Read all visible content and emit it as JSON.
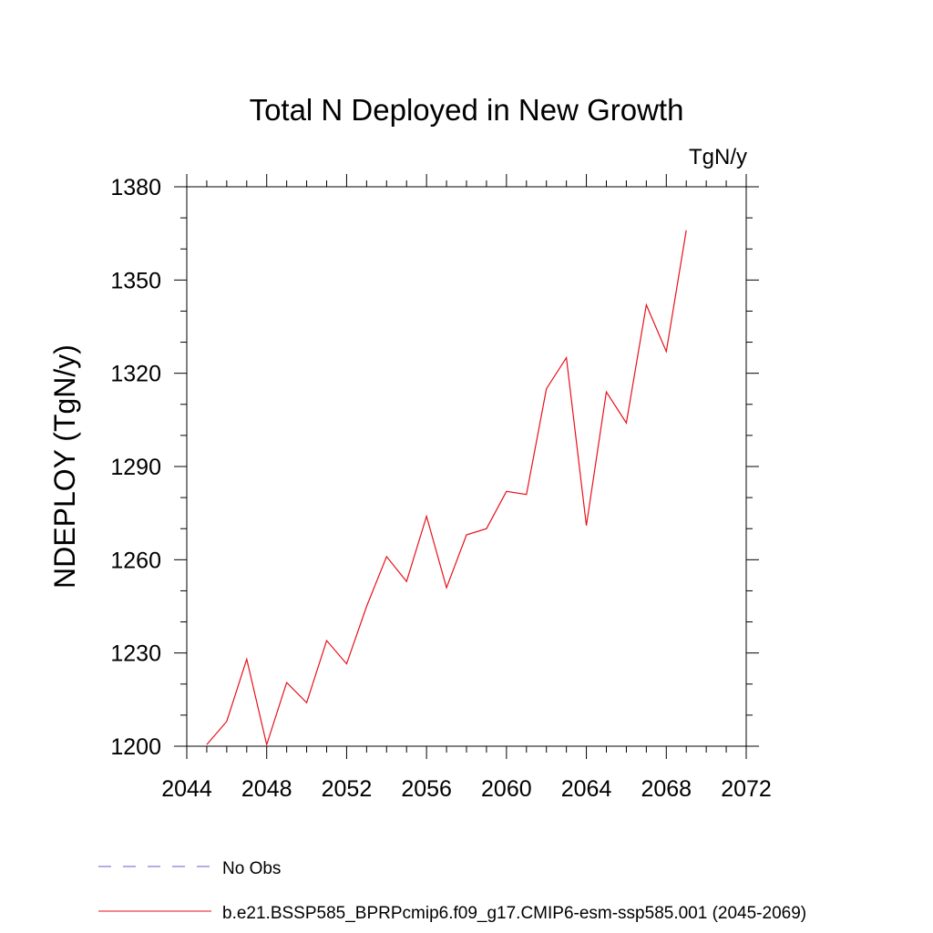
{
  "chart_data": {
    "type": "line",
    "title": "Total N Deployed in New Growth",
    "units_label": "TgN/y",
    "ylabel": "NDEPLOY  (TgN/y)",
    "xlabel": "",
    "xlim": [
      2044,
      2072
    ],
    "ylim": [
      1200,
      1380
    ],
    "x_ticks": [
      2044,
      2048,
      2052,
      2056,
      2060,
      2064,
      2068,
      2072
    ],
    "y_ticks": [
      1200,
      1230,
      1260,
      1290,
      1320,
      1350,
      1380
    ],
    "x_minor_step": 1,
    "y_minor_step": 10,
    "grid": false,
    "legend_position": "bottom-left",
    "x": [
      2045,
      2046,
      2047,
      2048,
      2049,
      2050,
      2051,
      2052,
      2053,
      2054,
      2055,
      2056,
      2057,
      2058,
      2059,
      2060,
      2061,
      2062,
      2063,
      2064,
      2065,
      2066,
      2067,
      2068,
      2069
    ],
    "series": [
      {
        "name": "b.e21.BSSP585_BPRPcmip6.f09_g17.CMIP6-esm-ssp585.001 (2045-2069)",
        "color": "#e8101a",
        "dash": "solid",
        "values": [
          1200.5,
          1208,
          1228,
          1200.5,
          1220.5,
          1214,
          1234,
          1226.5,
          1245,
          1261,
          1253,
          1274,
          1251,
          1268,
          1270,
          1282,
          1281,
          1315,
          1325,
          1271,
          1314,
          1304,
          1342,
          1327,
          1366
        ]
      }
    ],
    "legend": [
      {
        "label": "No Obs",
        "color": "#6a5acd",
        "dash": "dashed"
      },
      {
        "label": "b.e21.BSSP585_BPRPcmip6.f09_g17.CMIP6-esm-ssp585.001 (2045-2069)",
        "color": "#e8101a",
        "dash": "solid"
      }
    ]
  }
}
